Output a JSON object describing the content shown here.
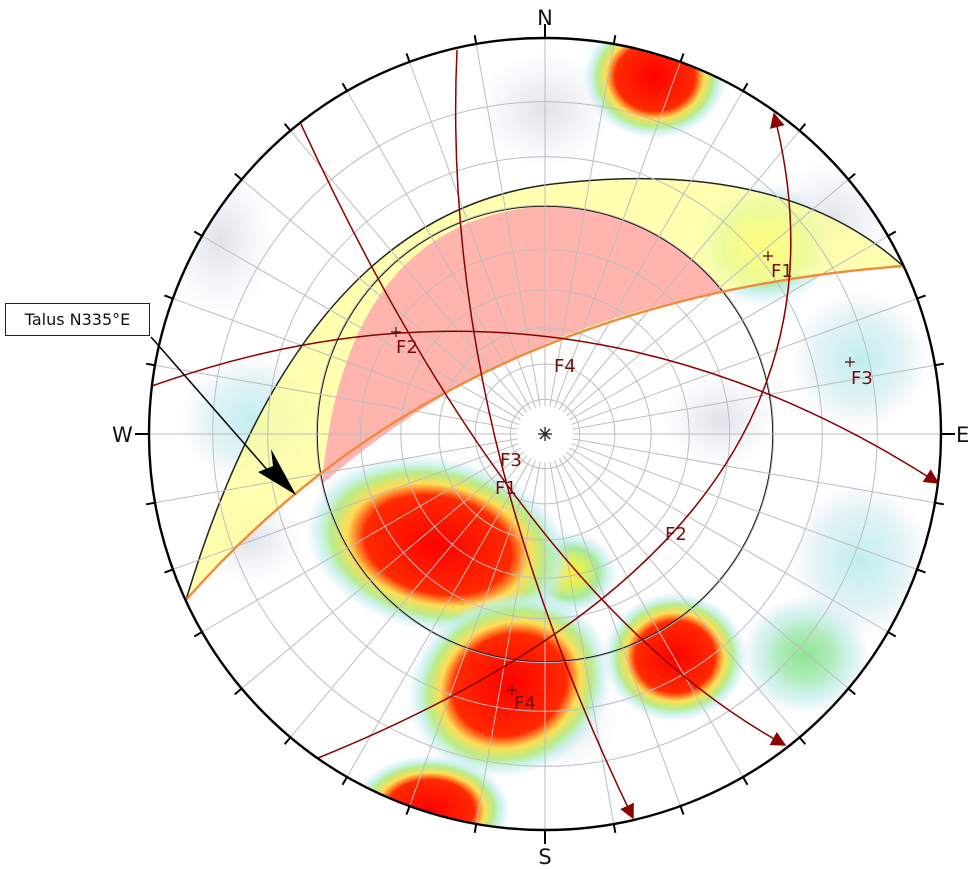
{
  "compass": {
    "north": "N",
    "south": "S",
    "east": "E",
    "west": "W"
  },
  "slope_label": "Talus N335°E",
  "plane_labels": {
    "f1_pole": "F1",
    "f1_intersection": "F1",
    "f2_pole": "F2",
    "f2_trace": "F2",
    "f3_pole": "F3",
    "f3_intersection": "F3",
    "f4_pole": "F4",
    "f4_trace": "F4"
  },
  "colors": {
    "great_circle": "#8b0000",
    "slope_face": "#f08a3c",
    "daylight_zone": "#ffff99",
    "critical_zone": "#ffadad",
    "density_high": "#ff0000",
    "density_mid": "#ffe066",
    "density_low": "#99e699",
    "density_faint": "#c4eef0"
  }
}
